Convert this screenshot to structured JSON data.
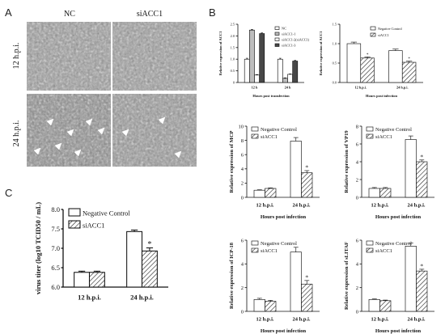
{
  "panel_labels": {
    "a": "A",
    "b": "B",
    "c": "C"
  },
  "micrograph": {
    "columns": [
      "NC",
      "siACC1"
    ],
    "rows": [
      "12 h.p.i.",
      "24 h.p.i."
    ]
  },
  "colors": {
    "bar_dark": "#474747",
    "bar_white": "#ffffff",
    "bar_light": "#bdbdbd",
    "axis": "#111111"
  },
  "chart_data": [
    {
      "id": "b1",
      "type": "bar",
      "categories": [
        "12 h",
        "24 h"
      ],
      "series": [
        {
          "name": "NC",
          "values": [
            1.0,
            1.0
          ],
          "errors": [
            0.04,
            0.04
          ]
        },
        {
          "name": "siACC1-1",
          "values": [
            2.25,
            0.18
          ],
          "errors": [
            0.03,
            0.02
          ]
        },
        {
          "name": "siACC1-2(siACC1)",
          "values": [
            0.32,
            0.35
          ],
          "errors": [
            0.02,
            0.02
          ]
        },
        {
          "name": "siACC1-3",
          "values": [
            2.1,
            0.92
          ],
          "errors": [
            0.03,
            0.03
          ]
        }
      ],
      "xlabel": "Hours post transfection",
      "ylabel": "Relative expression of ACC1",
      "ylim": [
        0,
        2.5
      ],
      "yticks": [
        "0",
        "0.5",
        "1.0",
        "1.5",
        "2.0",
        "2.5"
      ],
      "legend": "top-right"
    },
    {
      "id": "b2",
      "type": "bar",
      "categories": [
        "12 h.p.i.",
        "24 h.p.i."
      ],
      "series": [
        {
          "name": "Negative Control",
          "values": [
            1.0,
            0.82
          ],
          "errors": [
            0.04,
            0.04
          ]
        },
        {
          "name": "siACC1",
          "values": [
            0.63,
            0.52
          ],
          "errors": [
            0.03,
            0.03
          ]
        }
      ],
      "significance": [
        "*",
        "*"
      ],
      "xlabel": "Hours post infection",
      "ylabel": "Relative expression of ACC1",
      "ylim": [
        0,
        1.5
      ],
      "yticks": [
        "0.0",
        "0.5",
        "1.0",
        "1.5"
      ],
      "legend": "top-right"
    },
    {
      "id": "mcp",
      "type": "bar",
      "categories": [
        "12 h.p.i.",
        "24 h.p.i."
      ],
      "series": [
        {
          "name": "Negative Control",
          "values": [
            1.0,
            7.9
          ],
          "errors": [
            0.06,
            0.5
          ]
        },
        {
          "name": "siACC1",
          "values": [
            1.25,
            3.45
          ],
          "errors": [
            0.08,
            0.3
          ]
        }
      ],
      "significance": [
        "",
        "*"
      ],
      "xlabel": "Hours post infection",
      "ylabel": "Relative expression of MCP",
      "ylim": [
        0,
        10
      ],
      "yticks": [
        "0",
        "2",
        "4",
        "6",
        "8",
        "10"
      ],
      "legend": "top-left"
    },
    {
      "id": "vp19",
      "type": "bar",
      "categories": [
        "12 h.p.i.",
        "24 h.p.i."
      ],
      "series": [
        {
          "name": "Negative Control",
          "values": [
            1.0,
            6.5
          ],
          "errors": [
            0.1,
            0.4
          ]
        },
        {
          "name": "siACC1",
          "values": [
            1.0,
            4.0
          ],
          "errors": [
            0.1,
            0.2
          ]
        }
      ],
      "significance": [
        "",
        "*"
      ],
      "xlabel": "Hours post infection",
      "ylabel": "Relative expression of VP19",
      "ylim": [
        0,
        8
      ],
      "yticks": [
        "0",
        "2",
        "4",
        "6",
        "8"
      ],
      "legend": "top-left"
    },
    {
      "id": "icp18",
      "type": "bar",
      "categories": [
        "12 h.p.i.",
        "24 h.p.i."
      ],
      "series": [
        {
          "name": "Negative Control",
          "values": [
            1.0,
            5.0
          ],
          "errors": [
            0.1,
            0.4
          ]
        },
        {
          "name": "siACC1",
          "values": [
            0.85,
            2.3
          ],
          "errors": [
            0.08,
            0.3
          ]
        }
      ],
      "significance": [
        "",
        "*"
      ],
      "xlabel": "Hours post infection",
      "ylabel": "Relative expression of ICP-18",
      "ylim": [
        0,
        6
      ],
      "yticks": [
        "0",
        "2",
        "4",
        "6"
      ],
      "legend": "top-left"
    },
    {
      "id": "litaf",
      "type": "bar",
      "categories": [
        "12 h.p.i.",
        "24 h.p.i."
      ],
      "series": [
        {
          "name": "Negative Control",
          "values": [
            1.0,
            5.5
          ],
          "errors": [
            0.05,
            0.25
          ]
        },
        {
          "name": "siACC1",
          "values": [
            0.9,
            3.4
          ],
          "errors": [
            0.05,
            0.15
          ]
        }
      ],
      "significance": [
        "",
        "*"
      ],
      "xlabel": "Hours post infection",
      "ylabel": "Relative expression of sLITAF",
      "ylim": [
        0,
        6
      ],
      "yticks": [
        "0",
        "2",
        "4",
        "6"
      ],
      "legend": "top-left"
    },
    {
      "id": "titer",
      "type": "bar",
      "categories": [
        "12 h.p.i.",
        "24 h.p.i."
      ],
      "series": [
        {
          "name": "Negative Control",
          "values": [
            6.38,
            7.43
          ],
          "errors": [
            0.03,
            0.04
          ]
        },
        {
          "name": "siACC1",
          "values": [
            6.38,
            6.93
          ],
          "errors": [
            0.03,
            0.08
          ]
        }
      ],
      "significance": [
        "",
        "*"
      ],
      "xlabel": "",
      "ylabel": "virus titer (log10 TCID50 / mL)",
      "ylim": [
        6.0,
        8.0
      ],
      "yticks": [
        "6.0",
        "6.5",
        "7.0",
        "7.5",
        "8.0"
      ],
      "legend": "top-left"
    }
  ]
}
